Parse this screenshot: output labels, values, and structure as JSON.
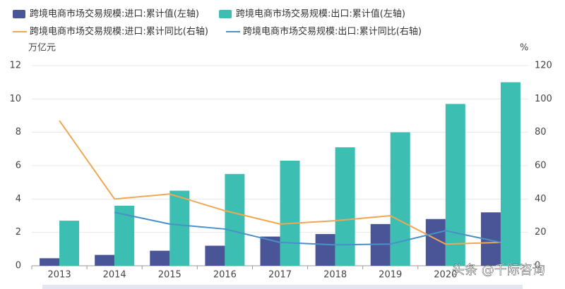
{
  "chart_data": {
    "type": "combo",
    "categories": [
      "2013",
      "2014",
      "2015",
      "2016",
      "2017",
      "2018",
      "2019",
      "2020",
      null
    ],
    "series": [
      {
        "name": "跨境电商市场交易规模:进口:累计值(左轴)",
        "type": "bar",
        "color": "#4a5597",
        "values": [
          0.45,
          0.65,
          0.9,
          1.2,
          1.75,
          1.9,
          2.5,
          2.8,
          3.2
        ]
      },
      {
        "name": "跨境电商市场交易规模:出口:累计值(左轴)",
        "type": "bar",
        "color": "#3cbfb2",
        "values": [
          2.7,
          3.6,
          4.5,
          5.5,
          6.3,
          7.1,
          8.0,
          9.7,
          11.0
        ]
      },
      {
        "name": "跨境电商市场交易规模:进口:累计同比(右轴)",
        "type": "line",
        "axis": "y2",
        "color": "#f0a752",
        "values": [
          87,
          40,
          43,
          33,
          25,
          27,
          30,
          13,
          14
        ]
      },
      {
        "name": "跨境电商市场交易规模:出口:累计同比(右轴)",
        "type": "line",
        "axis": "y2",
        "color": "#4a90c8",
        "values": [
          null,
          32,
          25,
          22,
          14,
          12.5,
          13,
          21,
          14
        ]
      }
    ],
    "ylabel": "万亿元",
    "y2label": "%",
    "ylim": [
      0,
      12
    ],
    "yticks": [
      0,
      2,
      4,
      6,
      8,
      10,
      12
    ],
    "y2lim": [
      0,
      120
    ],
    "y2ticks": [
      0,
      20,
      40,
      60,
      80,
      100,
      120
    ],
    "grid": true,
    "watermark": "头条 @千际咨询"
  }
}
